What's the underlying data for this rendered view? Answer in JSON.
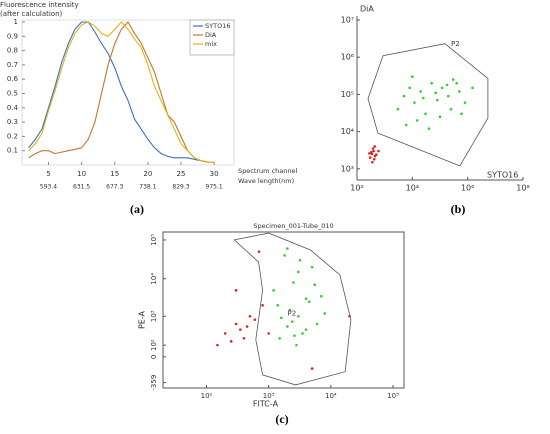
{
  "chart_data": [
    {
      "type": "line",
      "label": "(a)",
      "ylabel": [
        "Fluorescence intensity",
        "(after calculation)"
      ],
      "xlabel": "Spectrum channel",
      "xlabel2": "Wave length(nm)",
      "x": [
        2,
        3,
        4,
        5,
        6,
        7,
        8,
        9,
        10,
        11,
        12,
        13,
        14,
        15,
        16,
        17,
        18,
        19,
        20,
        21,
        22,
        23,
        24,
        25,
        26,
        27,
        28,
        29,
        30
      ],
      "xlim": [
        1,
        33
      ],
      "xticks": [
        5,
        10,
        15,
        20,
        25,
        30
      ],
      "wavelength_labels": [
        "593.4",
        "631.5",
        "677.3",
        "738.1",
        "829.3",
        "975.1"
      ],
      "ylim": [
        0,
        1
      ],
      "yticks": [
        0.1,
        0.2,
        0.3,
        0.4,
        0.5,
        0.6,
        0.7,
        0.8,
        0.9,
        1
      ],
      "legend": "upper right",
      "series": [
        {
          "name": "SYTO16",
          "color": "#3b6fc9",
          "values": [
            0.12,
            0.18,
            0.25,
            0.4,
            0.55,
            0.72,
            0.85,
            0.95,
            1.0,
            1.0,
            0.93,
            0.85,
            0.78,
            0.68,
            0.55,
            0.45,
            0.32,
            0.25,
            0.18,
            0.12,
            0.08,
            0.06,
            0.05,
            0.05,
            0.05,
            0.04,
            0.03,
            0.02,
            0.02
          ]
        },
        {
          "name": "DiA",
          "color": "#c8742a",
          "values": [
            0.05,
            0.08,
            0.1,
            0.1,
            0.08,
            0.09,
            0.1,
            0.11,
            0.12,
            0.18,
            0.3,
            0.5,
            0.7,
            0.85,
            0.95,
            1.0,
            0.92,
            0.85,
            0.75,
            0.65,
            0.5,
            0.35,
            0.3,
            0.2,
            0.1,
            0.05,
            0.03,
            0.02,
            0.02
          ]
        },
        {
          "name": "mix",
          "color": "#e3b21c",
          "values": [
            0.1,
            0.15,
            0.22,
            0.38,
            0.52,
            0.68,
            0.82,
            0.92,
            0.98,
            1.0,
            0.97,
            0.92,
            0.9,
            0.95,
            1.0,
            0.95,
            0.88,
            0.82,
            0.7,
            0.55,
            0.45,
            0.35,
            0.25,
            0.15,
            0.1,
            0.05,
            0.03,
            0.02,
            0.02
          ]
        }
      ]
    },
    {
      "type": "scatter",
      "label": "(b)",
      "ylabel": "DiA",
      "xlabel": "SYTO16",
      "xscale": "log",
      "yscale": "log",
      "xlim": [
        100,
        100000000
      ],
      "xticks": [
        {
          "value": 100,
          "label": "10²"
        },
        {
          "value": 10000,
          "label": "10⁴"
        },
        {
          "value": 1000000,
          "label": "10⁶"
        },
        {
          "value": 100000000,
          "label": "10⁸"
        }
      ],
      "ylim": [
        500,
        10000000
      ],
      "yticks": [
        {
          "value": 1000,
          "label": "10³"
        },
        {
          "value": 10000,
          "label": "10⁴"
        },
        {
          "value": 100000,
          "label": "10⁵"
        },
        {
          "value": 1000000,
          "label": "10⁶"
        },
        {
          "value": 10000000,
          "label": "10⁷"
        }
      ],
      "gates": [
        {
          "label": "P2",
          "x": [
            250,
            870,
            150000,
            5400000,
            5400000,
            520000,
            570
          ],
          "y": [
            77000,
            1100000,
            2300000,
            270000,
            23000,
            1200,
            9100
          ]
        }
      ],
      "series": [
        {
          "color": "#2ed12e",
          "x": [
            3000,
            5000,
            8000,
            12000,
            20000,
            30000,
            50000,
            80000,
            120000,
            200000,
            300000,
            500000,
            800000,
            1500000,
            6000,
            15000,
            40000,
            100000,
            250000,
            600000,
            10000,
            25000,
            70000,
            180000,
            400000
          ],
          "values": [
            40000,
            90000,
            150000,
            60000,
            120000,
            30000,
            200000,
            70000,
            150000,
            90000,
            250000,
            120000,
            60000,
            150000,
            15000,
            20000,
            12000,
            25000,
            40000,
            30000,
            300000,
            80000,
            110000,
            180000,
            200000
          ]
        },
        {
          "color": "#e01f1f",
          "x": [
            300,
            350,
            400,
            450,
            380,
            420,
            330,
            500,
            360,
            440,
            600,
            280
          ],
          "values": [
            2000,
            2500,
            3000,
            2200,
            3500,
            1800,
            2800,
            2400,
            1500,
            4000,
            3000,
            2600
          ]
        }
      ]
    },
    {
      "type": "scatter",
      "label": "(c)",
      "title": "Specimen_001-Tube_010",
      "ylabel": "PE-A",
      "xlabel": "FITC-A",
      "xscale": "log",
      "yscale": "symlog",
      "xlim": [
        20,
        150000
      ],
      "xticks": [
        {
          "value": 100,
          "label": "10²"
        },
        {
          "value": 1000,
          "label": "10³"
        },
        {
          "value": 10000,
          "label": "10⁴"
        },
        {
          "value": 100000,
          "label": "10⁵"
        }
      ],
      "ylim": [
        -530,
        160000
      ],
      "yticks": [
        -359,
        0,
        {
          "value": 100,
          "label": "10²"
        },
        {
          "value": 1000,
          "label": "10³"
        },
        {
          "value": 10000,
          "label": "10⁴"
        },
        {
          "value": 100000,
          "label": "10⁵"
        }
      ],
      "gates": [
        {
          "label": "P2",
          "x": [
            280,
            1000,
            4700,
            14000,
            21000,
            17000,
            2700,
            800,
            620,
            800,
            690
          ],
          "y": [
            100000,
            150000,
            55000,
            12500,
            790,
            -140,
            -425,
            -190,
            175,
            5100,
            27000
          ]
        }
      ],
      "series": [
        {
          "color": "#2ed12e",
          "x": [
            1500,
            2000,
            3000,
            4000,
            2500,
            5000,
            1800,
            3500,
            6000,
            2200,
            2800,
            4500,
            1200,
            8000,
            3000,
            2000,
            4000,
            1600,
            5500,
            2600,
            3200,
            7000,
            1400,
            2400
          ],
          "values": [
            200,
            500,
            1000,
            3000,
            8000,
            20000,
            40000,
            300,
            600,
            1500,
            100,
            2500,
            5000,
            1200,
            15000,
            60000,
            400,
            900,
            7000,
            250,
            30000,
            3500,
            2000,
            700
          ]
        },
        {
          "color": "#e01f1f",
          "x": [
            200,
            300,
            400,
            500,
            250,
            350,
            600,
            150,
            450,
            800,
            300,
            1000,
            700,
            5000,
            20000
          ],
          "values": [
            300,
            600,
            200,
            1000,
            150,
            400,
            800,
            100,
            500,
            2000,
            5000,
            300,
            50000,
            -100,
            1000
          ]
        }
      ]
    }
  ]
}
